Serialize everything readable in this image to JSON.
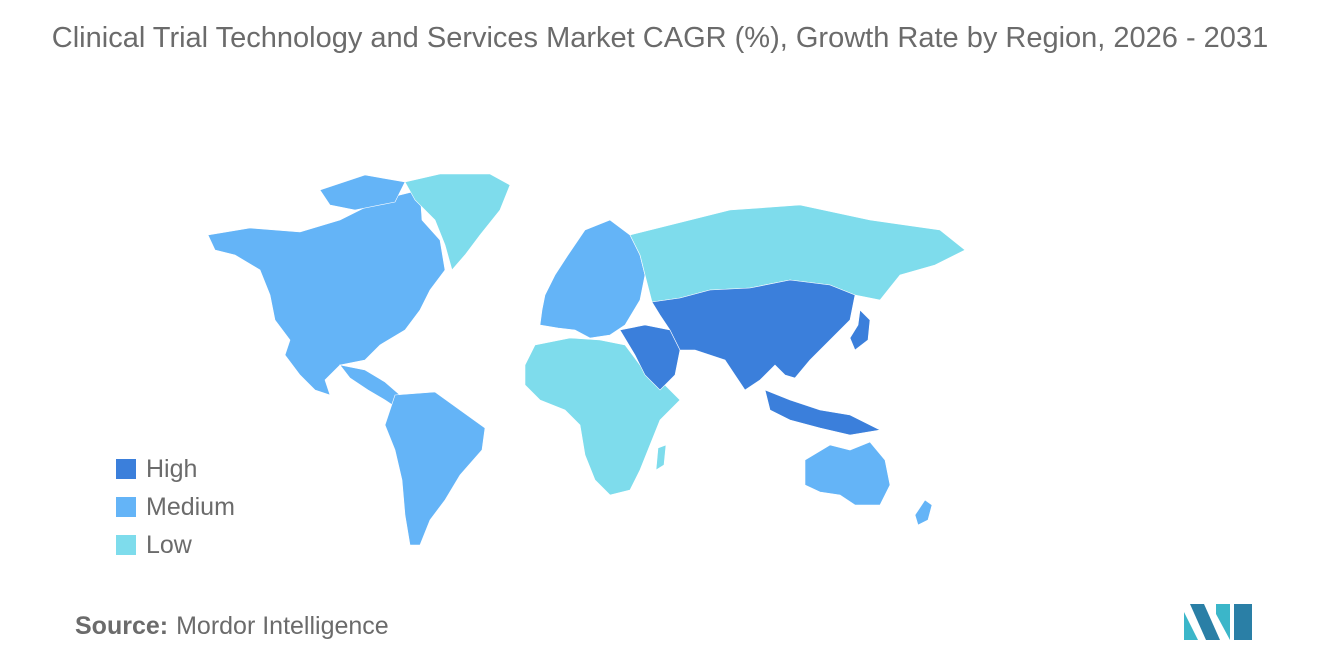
{
  "title": "Clinical Trial Technology and Services Market CAGR (%), Growth Rate by Region, 2026 - 2031",
  "colors": {
    "high": "#3b7fdb",
    "medium": "#64b4f7",
    "low": "#7edcec",
    "no_data": "#a9a9a9"
  },
  "legend": [
    {
      "label": "High",
      "level": "high"
    },
    {
      "label": "Medium",
      "level": "medium"
    },
    {
      "label": "Low",
      "level": "low"
    }
  ],
  "regions": [
    {
      "name": "North America",
      "level": "medium"
    },
    {
      "name": "Greenland",
      "level": "low"
    },
    {
      "name": "South America",
      "level": "medium"
    },
    {
      "name": "Europe",
      "level": "medium"
    },
    {
      "name": "Russia",
      "level": "low"
    },
    {
      "name": "Africa",
      "level": "low"
    },
    {
      "name": "Middle East",
      "level": "high"
    },
    {
      "name": "Asia",
      "level": "high"
    },
    {
      "name": "Australia",
      "level": "medium"
    },
    {
      "name": "New Zealand",
      "level": "medium"
    }
  ],
  "source": {
    "label": "Source:",
    "value": "Mordor Intelligence"
  }
}
